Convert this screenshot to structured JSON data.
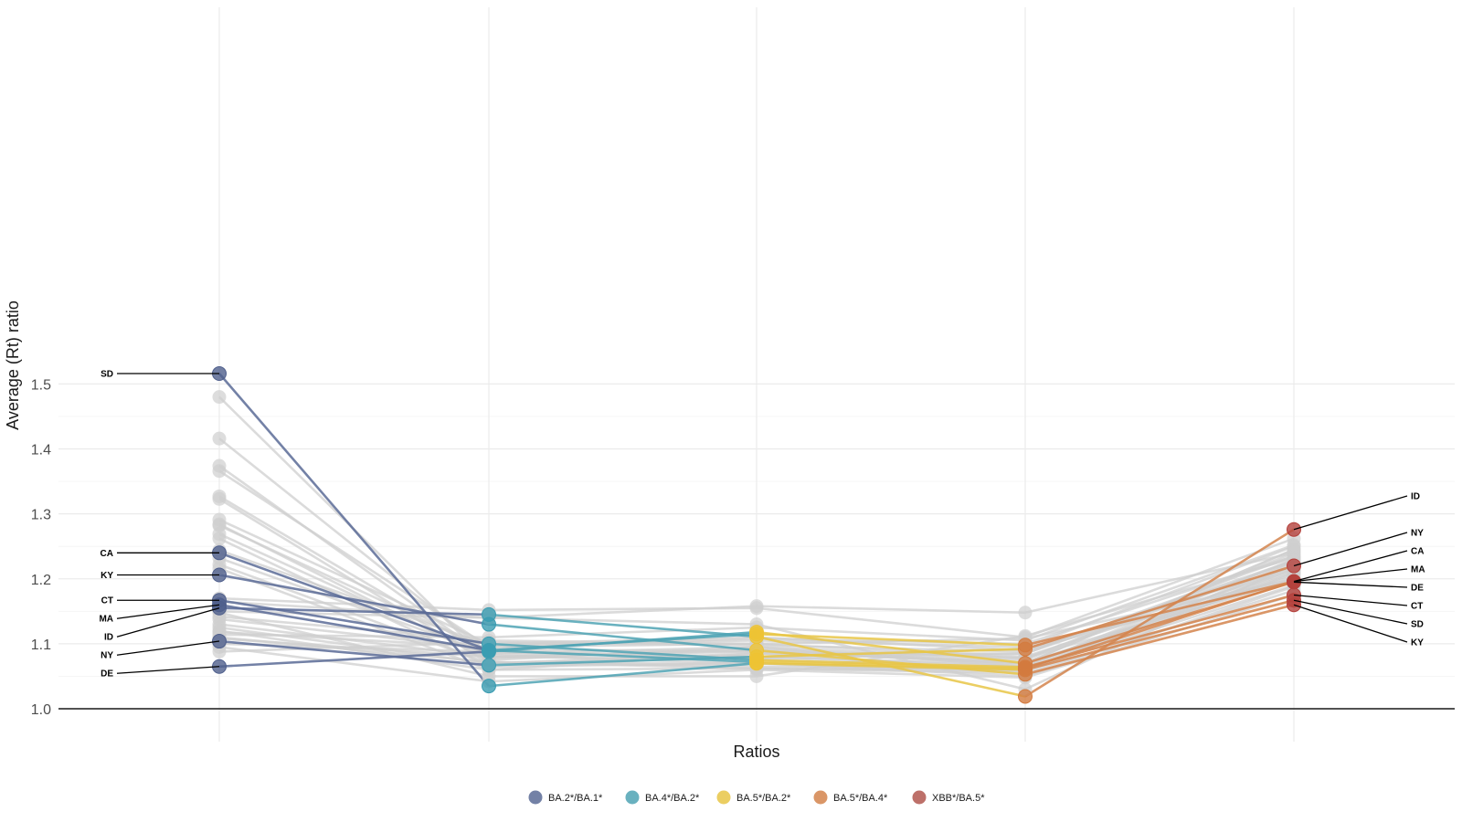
{
  "chart_data": {
    "type": "line",
    "ylabel": "Average (Rt) ratio",
    "xlabel": "Ratios",
    "ylim": [
      0.98,
      1.53
    ],
    "y_ticks": [
      "1.0",
      "1.1",
      "1.2",
      "1.3",
      "1.4",
      "1.5"
    ],
    "y_tick_values": [
      1.0,
      1.1,
      1.2,
      1.3,
      1.4,
      1.5
    ],
    "grid": true,
    "legend_position": "bottom",
    "categories": [
      "BA.2*/BA.1*",
      "BA.4*/BA.2*",
      "BA.5*/BA.2*",
      "BA.5*/BA.4*",
      "XBB*/BA.5*"
    ],
    "series_colors": [
      "#5b6b96",
      "#4fa3b4",
      "#e8c547",
      "#d4844c",
      "#b2574f"
    ],
    "highlight_marker_colors": [
      "#4f5f8c",
      "#3a9cb1",
      "#eec333",
      "#d37b3f",
      "#b4413c"
    ],
    "background_line_color": "#cfcfcf",
    "highlighted_series": [
      {
        "name": "SD",
        "values": [
          1.516,
          1.035,
          1.07,
          1.06,
          1.167
        ]
      },
      {
        "name": "CA",
        "values": [
          1.24,
          1.09,
          1.072,
          1.062,
          1.196
        ]
      },
      {
        "name": "KY",
        "values": [
          1.206,
          1.13,
          1.09,
          1.053,
          1.16
        ]
      },
      {
        "name": "CT",
        "values": [
          1.167,
          1.1,
          1.075,
          1.064,
          1.175
        ]
      },
      {
        "name": "MA",
        "values": [
          1.16,
          1.09,
          1.115,
          1.098,
          1.196
        ]
      },
      {
        "name": "ID",
        "values": [
          1.155,
          1.145,
          1.111,
          1.019,
          1.276
        ]
      },
      {
        "name": "NY",
        "values": [
          1.104,
          1.067,
          1.08,
          1.092,
          1.22
        ]
      },
      {
        "name": "DE",
        "values": [
          1.065,
          1.088,
          1.118,
          1.07,
          1.195
        ]
      }
    ],
    "background_series": [
      [
        1.48,
        1.072,
        1.065,
        1.06,
        1.21
      ],
      [
        1.416,
        1.085,
        1.08,
        1.065,
        1.23
      ],
      [
        1.374,
        1.078,
        1.092,
        1.07,
        1.245
      ],
      [
        1.366,
        1.095,
        1.1,
        1.08,
        1.215
      ],
      [
        1.327,
        1.082,
        1.07,
        1.058,
        1.225
      ],
      [
        1.323,
        1.07,
        1.085,
        1.075,
        1.24
      ],
      [
        1.291,
        1.1,
        1.11,
        1.09,
        1.2
      ],
      [
        1.284,
        1.075,
        1.095,
        1.065,
        1.22
      ],
      [
        1.282,
        1.09,
        1.078,
        1.085,
        1.235
      ],
      [
        1.269,
        1.08,
        1.088,
        1.07,
        1.205
      ],
      [
        1.262,
        1.065,
        1.07,
        1.06,
        1.19
      ],
      [
        1.244,
        1.098,
        1.105,
        1.095,
        1.25
      ],
      [
        1.232,
        1.085,
        1.095,
        1.078,
        1.228
      ],
      [
        1.222,
        1.07,
        1.08,
        1.068,
        1.212
      ],
      [
        1.216,
        1.06,
        1.062,
        1.055,
        1.182
      ],
      [
        1.17,
        1.152,
        1.155,
        1.11,
        1.262
      ],
      [
        1.165,
        1.14,
        1.158,
        1.148,
        1.24
      ],
      [
        1.15,
        1.14,
        1.13,
        1.03,
        1.222
      ],
      [
        1.148,
        1.05,
        1.05,
        1.112,
        1.232
      ],
      [
        1.142,
        1.105,
        1.1,
        1.108,
        1.2
      ],
      [
        1.138,
        1.092,
        1.088,
        1.07,
        1.245
      ],
      [
        1.13,
        1.08,
        1.076,
        1.062,
        1.215
      ],
      [
        1.125,
        1.07,
        1.07,
        1.05,
        1.188
      ],
      [
        1.12,
        1.06,
        1.085,
        1.085,
        1.226
      ],
      [
        1.118,
        1.095,
        1.108,
        1.1,
        1.235
      ],
      [
        1.114,
        1.11,
        1.125,
        1.105,
        1.252
      ],
      [
        1.11,
        1.072,
        1.062,
        1.058,
        1.208
      ],
      [
        1.108,
        1.08,
        1.09,
        1.078,
        1.198
      ],
      [
        1.1,
        1.088,
        1.08,
        1.092,
        1.218
      ],
      [
        1.095,
        1.042,
        1.06,
        1.048,
        1.175
      ],
      [
        1.088,
        1.102,
        1.098,
        1.088,
        1.228
      ]
    ],
    "legend": [
      {
        "label": "BA.2*/BA.1*"
      },
      {
        "label": "BA.4*/BA.2*"
      },
      {
        "label": "BA.5*/BA.2*"
      },
      {
        "label": "BA.5*/BA.4*"
      },
      {
        "label": "XBB*/BA.5*"
      }
    ]
  }
}
